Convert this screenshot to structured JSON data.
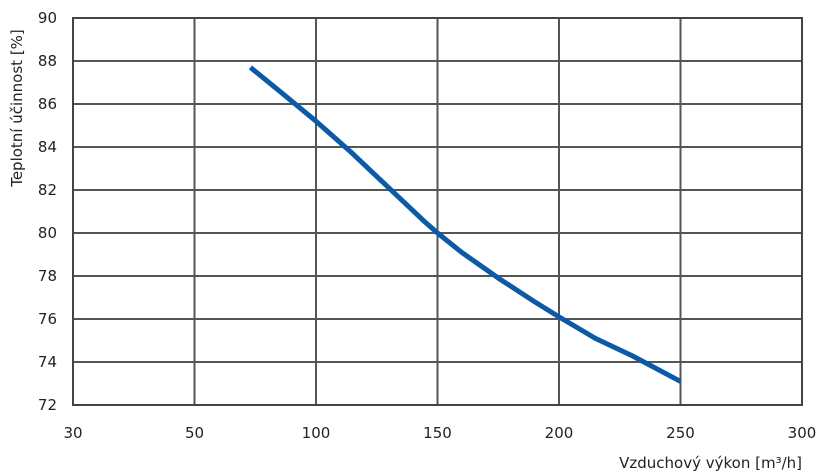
{
  "chart_data": {
    "type": "line",
    "xlabel": "Vzduchový výkon [m³/h]",
    "ylabel": "Teplotní účinnost [%]",
    "xlim": [
      30,
      300
    ],
    "ylim": [
      72,
      90
    ],
    "x_ticks": [
      "30",
      "50",
      "100",
      "150",
      "200",
      "250",
      "300"
    ],
    "y_ticks": [
      "72",
      "74",
      "76",
      "78",
      "80",
      "82",
      "84",
      "86",
      "88",
      "90"
    ],
    "grid": true,
    "series": [
      {
        "color": "#0a5aa8",
        "x": [
          73,
          85,
          100,
          115,
          130,
          145,
          150,
          160,
          175,
          190,
          200,
          215,
          230,
          250
        ],
        "y": [
          87.7,
          86.6,
          85.2,
          83.7,
          82.1,
          80.5,
          80.0,
          79.1,
          77.9,
          76.8,
          76.1,
          75.1,
          74.3,
          73.1
        ]
      }
    ]
  }
}
